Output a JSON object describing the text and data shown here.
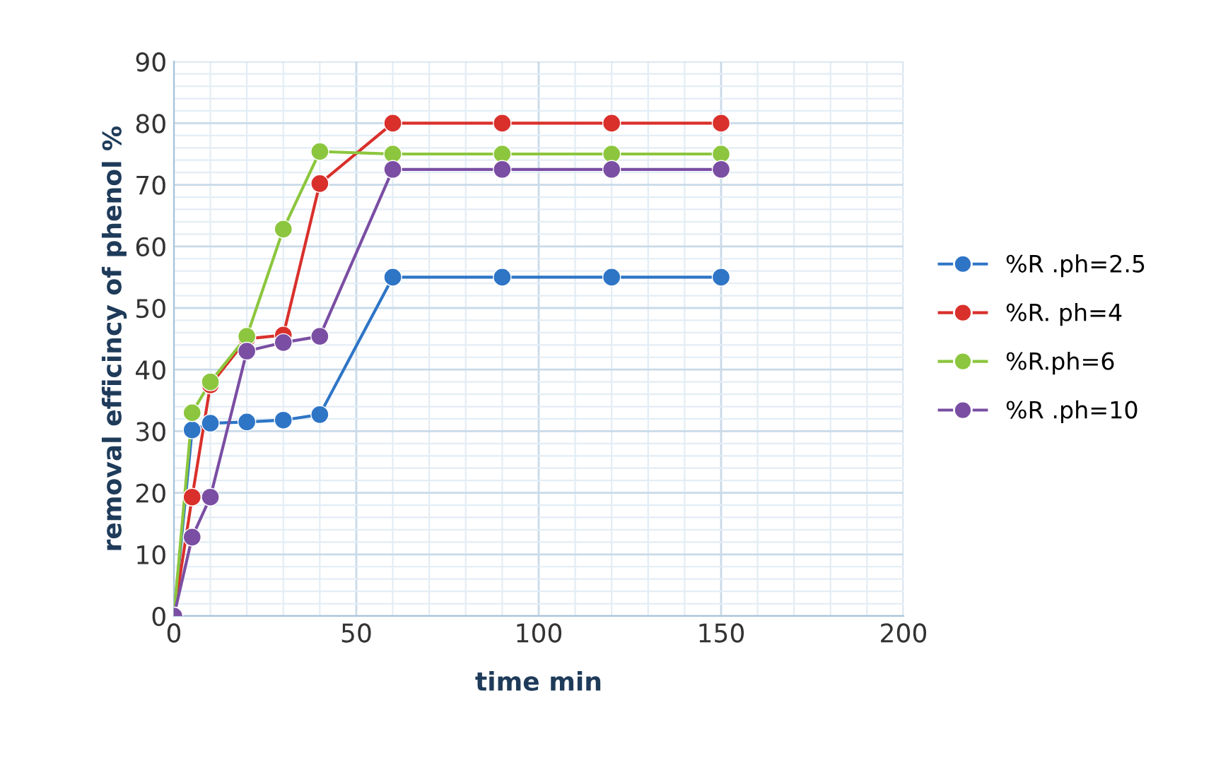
{
  "chart_data": {
    "type": "line",
    "xlabel": "time min",
    "ylabel": "removal efficincy of phenol %",
    "x": [
      0,
      5,
      10,
      20,
      30,
      40,
      60,
      90,
      120,
      150
    ],
    "series": [
      {
        "name": "%R .ph=2.5",
        "color": "#2e75c6",
        "values": [
          0,
          30.2,
          31.3,
          31.5,
          31.8,
          32.7,
          55,
          55,
          55,
          55
        ]
      },
      {
        "name": "%R. ph=4",
        "color": "#d9302c",
        "values": [
          0,
          19.3,
          37.5,
          45,
          45.6,
          70.2,
          80,
          80,
          80,
          80
        ]
      },
      {
        "name": "%R.ph=6",
        "color": "#8cc63e",
        "values": [
          0,
          33,
          38,
          45.4,
          62.8,
          75.4,
          75,
          75,
          75,
          75
        ]
      },
      {
        "name": "%R .ph=10",
        "color": "#7a4ea3",
        "values": [
          0,
          12.8,
          19.3,
          43,
          44.4,
          45.4,
          72.5,
          72.5,
          72.5,
          72.5
        ]
      }
    ],
    "xlim": [
      0,
      200
    ],
    "xticks": [
      0,
      50,
      100,
      150,
      200
    ],
    "ylim": [
      0,
      90
    ],
    "yticks": [
      0,
      10,
      20,
      30,
      40,
      50,
      60,
      70,
      80,
      90
    ],
    "grid": true,
    "legend": "right",
    "marker": "circle",
    "line_style": "solid"
  }
}
